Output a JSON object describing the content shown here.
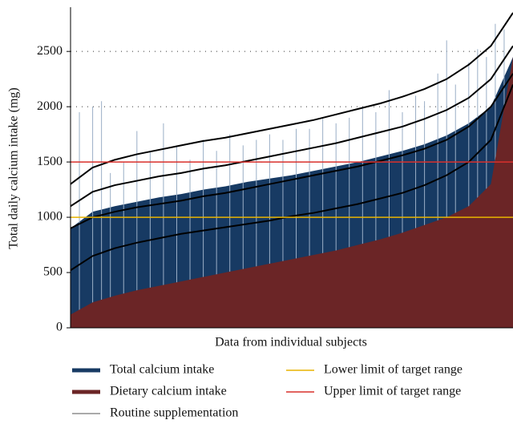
{
  "chart_data": {
    "type": "area",
    "x_label": "Data from individual subjects",
    "y_label": "Total daily calcium intake (mg)",
    "xlim": [
      0,
      100
    ],
    "ylim": [
      0,
      2900
    ],
    "yticks": [
      0,
      500,
      1000,
      1500,
      2000,
      2500
    ],
    "grid": true,
    "x": [
      0,
      5,
      10,
      15,
      20,
      25,
      30,
      35,
      40,
      45,
      50,
      55,
      60,
      65,
      70,
      75,
      80,
      85,
      90,
      95,
      100
    ],
    "series": [
      {
        "name": "Total calcium intake",
        "color": "#173a63",
        "values": [
          900,
          1050,
          1100,
          1140,
          1180,
          1210,
          1250,
          1280,
          1320,
          1350,
          1380,
          1420,
          1460,
          1500,
          1550,
          1600,
          1660,
          1740,
          1850,
          2000,
          2450
        ]
      },
      {
        "name": "Dietary calcium intake",
        "color": "#6b2526",
        "values": [
          120,
          230,
          290,
          340,
          380,
          420,
          460,
          500,
          540,
          580,
          620,
          660,
          700,
          750,
          800,
          860,
          930,
          1000,
          1100,
          1300,
          2450
        ]
      },
      {
        "name": "Routine supplementation",
        "color": "#9aaec6",
        "x": [
          2,
          5,
          7,
          9,
          12,
          15,
          18,
          21,
          24,
          27,
          30,
          33,
          36,
          39,
          42,
          45,
          48,
          51,
          54,
          57,
          60,
          63,
          66,
          69,
          72,
          75,
          78,
          80,
          83,
          85,
          87,
          90,
          92,
          94,
          96,
          98
        ],
        "values": [
          1950,
          2000,
          2050,
          1400,
          1500,
          1780,
          1600,
          1850,
          1650,
          1520,
          1700,
          1600,
          1750,
          1650,
          1700,
          1750,
          1700,
          1800,
          1800,
          1900,
          1850,
          1900,
          2000,
          1950,
          2150,
          1950,
          2100,
          2050,
          2300,
          2600,
          2200,
          2400,
          2520,
          2450,
          2750,
          2700
        ]
      }
    ],
    "curves": [
      {
        "color": "#000000",
        "values": [
          1300,
          1450,
          1520,
          1570,
          1610,
          1650,
          1690,
          1720,
          1760,
          1800,
          1840,
          1880,
          1930,
          1980,
          2030,
          2090,
          2160,
          2250,
          2380,
          2550,
          2850
        ]
      },
      {
        "color": "#000000",
        "values": [
          1100,
          1230,
          1290,
          1330,
          1370,
          1400,
          1440,
          1470,
          1510,
          1550,
          1590,
          1630,
          1670,
          1720,
          1770,
          1820,
          1890,
          1970,
          2080,
          2250,
          2550
        ]
      },
      {
        "color": "#000000",
        "values": [
          900,
          1000,
          1050,
          1090,
          1120,
          1150,
          1190,
          1220,
          1260,
          1300,
          1340,
          1380,
          1420,
          1460,
          1510,
          1560,
          1620,
          1700,
          1820,
          2000,
          2300
        ]
      },
      {
        "color": "#000000",
        "values": [
          520,
          650,
          720,
          770,
          810,
          850,
          880,
          910,
          940,
          970,
          1010,
          1040,
          1080,
          1120,
          1170,
          1220,
          1290,
          1380,
          1500,
          1700,
          2200
        ]
      }
    ],
    "reference_lines": [
      {
        "name": "Lower limit of target range",
        "value": 1000,
        "color": "#e8b400"
      },
      {
        "name": "Upper limit of target range",
        "value": 1500,
        "color": "#d9302c"
      }
    ]
  }
}
